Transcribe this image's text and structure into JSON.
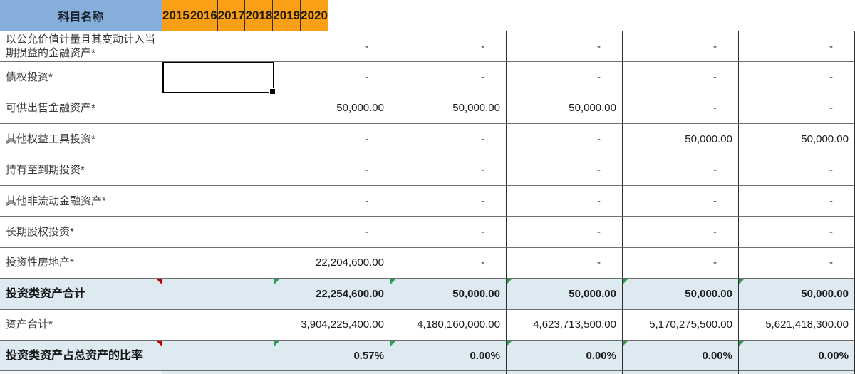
{
  "header": {
    "label_col": "科目名称",
    "years": [
      "2015",
      "2016",
      "2017",
      "2018",
      "2019",
      "2020"
    ]
  },
  "colors": {
    "header_label_bg": "#86AEDA",
    "header_year_bg": "#FBA016",
    "total_row_bg": "#DDEAF2",
    "grid_vertical": "#2e2e2e",
    "grid_horizontal": "#6f6f6f",
    "comment_red": "#C00000",
    "error_green": "#2E9E4C"
  },
  "selection": {
    "row_label": "债权投资*",
    "column": "2015"
  },
  "rows": [
    {
      "label": "以公允价值计量且其变动计入当期损益的金融资产*",
      "emphasis": false,
      "values": [
        "",
        "-",
        "-",
        "-",
        "-",
        "-"
      ],
      "red_marker": false,
      "green_markers": []
    },
    {
      "label": "债权投资*",
      "emphasis": false,
      "values": [
        "",
        "-",
        "-",
        "-",
        "-",
        "-"
      ],
      "selected_col": 0,
      "red_marker": false,
      "green_markers": []
    },
    {
      "label": "可供出售金融资产*",
      "emphasis": false,
      "values": [
        "",
        "50,000.00",
        "50,000.00",
        "50,000.00",
        "-",
        "-"
      ],
      "red_marker": false,
      "green_markers": []
    },
    {
      "label": "其他权益工具投资*",
      "emphasis": false,
      "values": [
        "",
        "-",
        "-",
        "-",
        "50,000.00",
        "50,000.00"
      ],
      "red_marker": false,
      "green_markers": []
    },
    {
      "label": "持有至到期投资*",
      "emphasis": false,
      "values": [
        "",
        "-",
        "-",
        "-",
        "-",
        "-"
      ],
      "red_marker": false,
      "green_markers": []
    },
    {
      "label": "其他非流动金融资产*",
      "emphasis": false,
      "values": [
        "",
        "-",
        "-",
        "-",
        "-",
        "-"
      ],
      "red_marker": false,
      "green_markers": []
    },
    {
      "label": "长期股权投资*",
      "emphasis": false,
      "values": [
        "",
        "-",
        "-",
        "-",
        "-",
        "-"
      ],
      "red_marker": false,
      "green_markers": []
    },
    {
      "label": "投资性房地产*",
      "emphasis": false,
      "values": [
        "",
        "22,204,600.00",
        "-",
        "-",
        "-",
        "-"
      ],
      "red_marker": false,
      "green_markers": []
    },
    {
      "label": "投资类资产合计",
      "emphasis": true,
      "values": [
        "",
        "22,254,600.00",
        "50,000.00",
        "50,000.00",
        "50,000.00",
        "50,000.00"
      ],
      "red_marker": true,
      "green_markers": [
        1,
        2,
        3,
        4,
        5
      ]
    },
    {
      "label": "资产合计*",
      "emphasis": false,
      "values": [
        "",
        "3,904,225,400.00",
        "4,180,160,000.00",
        "4,623,713,500.00",
        "5,170,275,500.00",
        "5,621,418,300.00"
      ],
      "red_marker": false,
      "green_markers": []
    },
    {
      "label": "投资类资产占总资产的比率",
      "emphasis": true,
      "values": [
        "",
        "0.57%",
        "0.00%",
        "0.00%",
        "0.00%",
        "0.00%"
      ],
      "red_marker": true,
      "green_markers": [
        1,
        2,
        3,
        4,
        5
      ]
    }
  ]
}
